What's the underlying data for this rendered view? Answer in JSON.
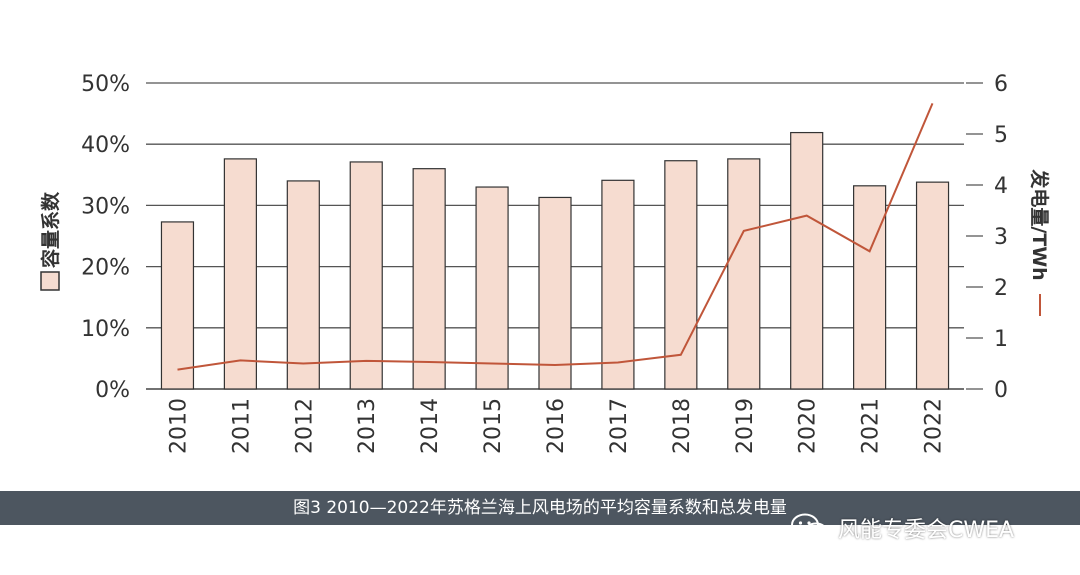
{
  "chart_data": {
    "type": "bar",
    "categories": [
      "2010",
      "2011",
      "2012",
      "2013",
      "2014",
      "2015",
      "2016",
      "2017",
      "2018",
      "2019",
      "2020",
      "2021",
      "2022"
    ],
    "series": [
      {
        "name": "容量系数",
        "type": "bar",
        "axis": "left",
        "unit": "%",
        "values": [
          27.3,
          37.6,
          34.0,
          37.1,
          36.0,
          33.0,
          31.3,
          34.1,
          37.3,
          37.6,
          41.9,
          33.2,
          33.8
        ],
        "color": "#f6dcd0",
        "stroke": "#333333"
      },
      {
        "name": "发电量/TWh",
        "type": "line",
        "axis": "right",
        "unit": "TWh",
        "values": [
          0.38,
          0.56,
          0.5,
          0.55,
          0.53,
          0.5,
          0.47,
          0.52,
          0.67,
          3.1,
          3.4,
          2.7,
          5.6
        ],
        "color": "#c0563a"
      }
    ],
    "y_left": {
      "ticks": [
        "0%",
        "10%",
        "20%",
        "30%",
        "40%",
        "50%"
      ],
      "min": 0,
      "max": 50,
      "label": "容量系数"
    },
    "y_right": {
      "ticks": [
        "0",
        "1",
        "2",
        "3",
        "4",
        "5",
        "6"
      ],
      "min": 0,
      "max": 6,
      "label": "发电量/TWh"
    },
    "grid": true
  },
  "caption": "图3 2010—2022年苏格兰海上风电场的平均容量系数和总发电量",
  "watermark": "风能专委会CWEA"
}
